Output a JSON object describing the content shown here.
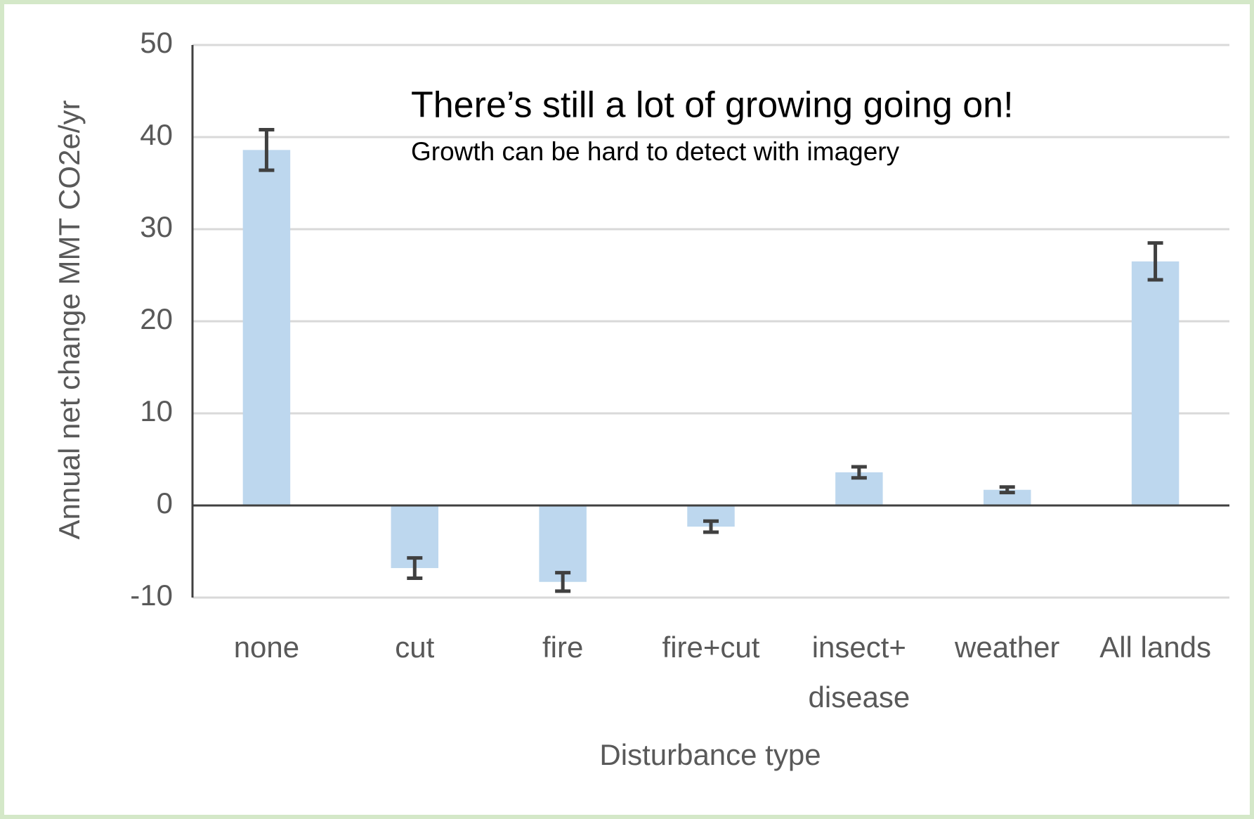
{
  "chart_data": {
    "type": "bar",
    "title": "There’s still a lot of growing going on!",
    "subtitle": "Growth can be hard to detect with imagery",
    "x_label": "Disturbance type",
    "y_label": "Annual net change MMT CO2e/yr",
    "categories": [
      "none",
      "cut",
      "fire",
      "fire+cut",
      "insect+\ndisease",
      "weather",
      "All lands"
    ],
    "values": [
      38.6,
      -6.8,
      -8.3,
      -2.3,
      3.6,
      1.7,
      26.5
    ],
    "errors": [
      2.2,
      1.1,
      1.0,
      0.6,
      0.6,
      0.3,
      2.0
    ],
    "color": "#bdd7ee",
    "error_color": "#404040",
    "ylim": [
      -10,
      50
    ],
    "yticks": [
      -10,
      0,
      10,
      20,
      30,
      40,
      50
    ],
    "grid": true
  }
}
